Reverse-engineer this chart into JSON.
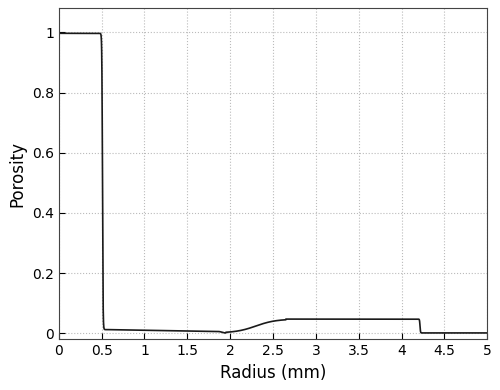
{
  "xlabel": "Radius (mm)",
  "ylabel": "Porosity",
  "xlim": [
    0,
    5
  ],
  "ylim": [
    -0.02,
    1.08
  ],
  "xticks": [
    0,
    0.5,
    1,
    1.5,
    2,
    2.5,
    3,
    3.5,
    4,
    4.5,
    5
  ],
  "yticks": [
    0,
    0.2,
    0.4,
    0.6,
    0.8,
    1
  ],
  "xtick_labels": [
    "0",
    "0.5",
    "1",
    "1.5",
    "2",
    "2.5",
    "3",
    "3.5",
    "4",
    "4.5",
    "5"
  ],
  "ytick_labels": [
    "0",
    "0.2",
    "0.4",
    "0.6",
    "0.8",
    "1"
  ],
  "grid_color": "#bbbbbb",
  "line_color": "#1a1a1a",
  "bg_color": "#ffffff",
  "figsize": [
    5.0,
    3.9
  ],
  "dpi": 100,
  "xlabel_fontsize": 12,
  "ylabel_fontsize": 12,
  "tick_fontsize": 10,
  "linewidth": 1.2
}
